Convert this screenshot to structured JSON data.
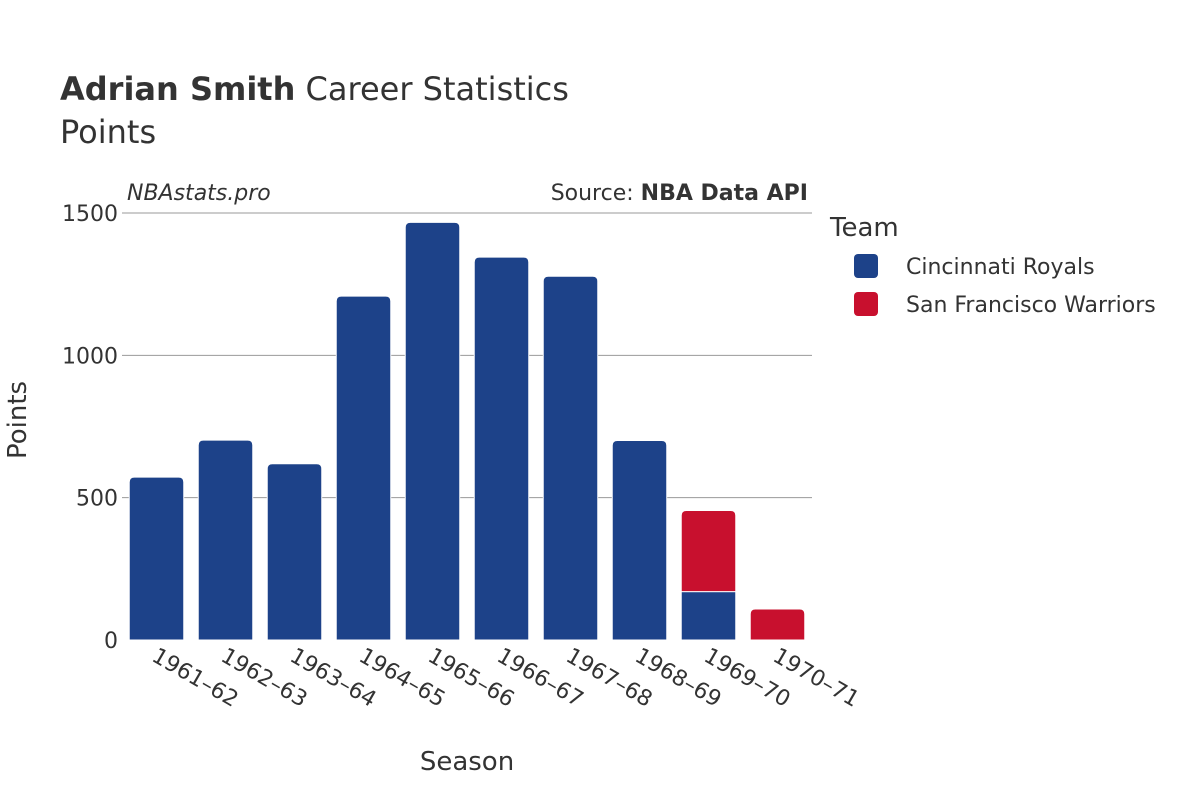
{
  "title": {
    "player": "Adrian Smith",
    "suffix": "Career Statistics",
    "metric": "Points"
  },
  "watermark": "NBAstats.pro",
  "source": {
    "prefix": "Source: ",
    "name": "NBA Data API"
  },
  "legend": {
    "title": "Team"
  },
  "colors": {
    "Cincinnati Royals": "#1d4289",
    "San Francisco Warriors": "#c8102e",
    "grid": "#999999",
    "text": "#333333"
  },
  "chart_data": {
    "type": "bar",
    "stacked": true,
    "title": "Adrian Smith Career Statistics",
    "subtitle": "Points",
    "xlabel": "Season",
    "ylabel": "Points",
    "ylim": [
      0,
      1500
    ],
    "yticks": [
      0,
      500,
      1000,
      1500
    ],
    "categories": [
      "1961–62",
      "1962–63",
      "1963–64",
      "1964–65",
      "1965–66",
      "1966–67",
      "1967–68",
      "1968–69",
      "1969–70",
      "1970–71"
    ],
    "series": [
      {
        "name": "Cincinnati Royals",
        "values": [
          572,
          702,
          619,
          1208,
          1467,
          1345,
          1278,
          701,
          170,
          0
        ]
      },
      {
        "name": "San Francisco Warriors",
        "values": [
          0,
          0,
          0,
          0,
          0,
          0,
          0,
          0,
          285,
          109
        ]
      }
    ]
  }
}
